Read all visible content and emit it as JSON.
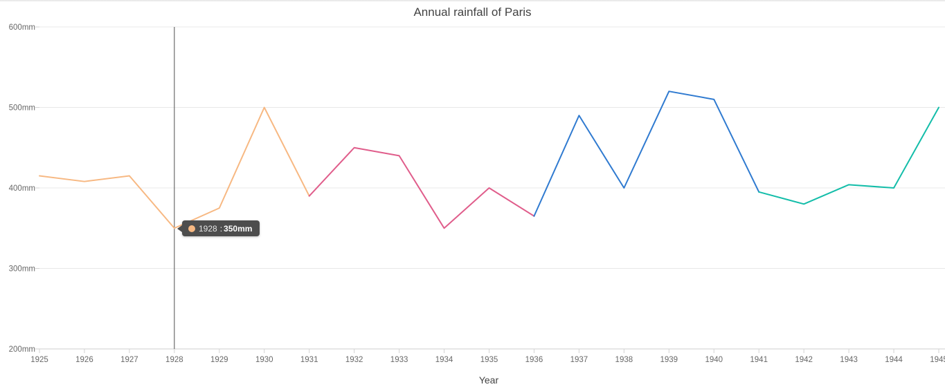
{
  "chart_data": {
    "type": "line",
    "title": "Annual rainfall of Paris",
    "xlabel": "Year",
    "ylabel": "",
    "x": [
      1925,
      1926,
      1927,
      1928,
      1929,
      1930,
      1931,
      1932,
      1933,
      1934,
      1935,
      1936,
      1937,
      1938,
      1939,
      1940,
      1941,
      1942,
      1943,
      1944,
      1945
    ],
    "x_tick_labels": [
      "1925",
      "1926",
      "1927",
      "1928",
      "1929",
      "1930",
      "1931",
      "1932",
      "1933",
      "1934",
      "1935",
      "1936",
      "1937",
      "1938",
      "1939",
      "1940",
      "1941",
      "1942",
      "1943",
      "1944",
      "1945"
    ],
    "values": [
      415,
      408,
      415,
      350,
      375,
      500,
      390,
      450,
      440,
      350,
      400,
      365,
      490,
      400,
      520,
      510,
      395,
      380,
      404,
      400,
      500
    ],
    "ylim": [
      200,
      600
    ],
    "y_ticks": [
      200,
      300,
      400,
      500,
      600
    ],
    "y_tick_labels": [
      "200mm",
      "300mm",
      "400mm",
      "500mm",
      "600mm"
    ],
    "xlim": [
      1925,
      1945
    ],
    "grid": true,
    "segments": [
      {
        "from": 1925,
        "to": 1931,
        "color": "#F7B882"
      },
      {
        "from": 1931,
        "to": 1936,
        "color": "#E05D8B"
      },
      {
        "from": 1936,
        "to": 1941,
        "color": "#2F7AD0"
      },
      {
        "from": 1941,
        "to": 1945,
        "color": "#13BDA9"
      }
    ],
    "crosshair_x": 1928,
    "tooltip": {
      "year": "1928",
      "value": "350mm",
      "marker_color": "#F7B882"
    }
  }
}
